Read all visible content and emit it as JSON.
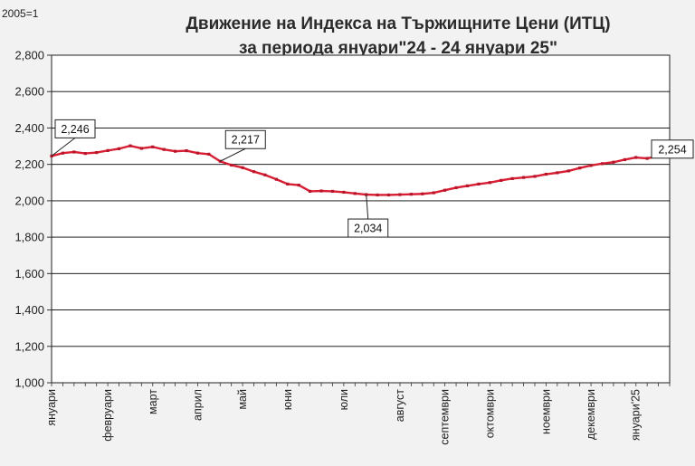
{
  "chart_data": {
    "type": "line",
    "title": "Движение на Индекса на Тържищните Цени (ИТЦ)",
    "subtitle": "за периода януари\"24 - 24 януари 25\"",
    "unit_label": "2005=1",
    "ylim": [
      1.0,
      2.8
    ],
    "yticks": [
      "1,000",
      "1,200",
      "1,400",
      "1,600",
      "1,800",
      "2,000",
      "2,200",
      "2,400",
      "2,600",
      "2,800"
    ],
    "xlabels": [
      "януари",
      "февруари",
      "март",
      "април",
      "май",
      "юни",
      "юли",
      "август",
      "септември",
      "октомври",
      "ноември",
      "декември",
      "януари'25"
    ],
    "x_count": 56,
    "x_label_positions": [
      0,
      5,
      9,
      13,
      17,
      21,
      26,
      31,
      35,
      39,
      44,
      48,
      52
    ],
    "grid": "horizontal",
    "line_color": "#d81e33",
    "series": [
      {
        "values": [
          2.246,
          2.262,
          2.268,
          2.26,
          2.265,
          2.276,
          2.286,
          2.302,
          2.288,
          2.296,
          2.282,
          2.272,
          2.275,
          2.262,
          2.256,
          2.217,
          2.196,
          2.182,
          2.16,
          2.142,
          2.118,
          2.092,
          2.086,
          2.052,
          2.054,
          2.052,
          2.047,
          2.04,
          2.034,
          2.032,
          2.032,
          2.034,
          2.036,
          2.038,
          2.044,
          2.058,
          2.072,
          2.082,
          2.092,
          2.1,
          2.112,
          2.122,
          2.128,
          2.134,
          2.146,
          2.154,
          2.164,
          2.18,
          2.194,
          2.204,
          2.212,
          2.226,
          2.238,
          2.233,
          2.246,
          2.254
        ]
      }
    ],
    "annotations": [
      {
        "index": 0,
        "label": "2,246"
      },
      {
        "index": 15,
        "label": "2,217"
      },
      {
        "index": 28,
        "label": "2,034"
      },
      {
        "index": 55,
        "label": "2,254"
      }
    ]
  }
}
